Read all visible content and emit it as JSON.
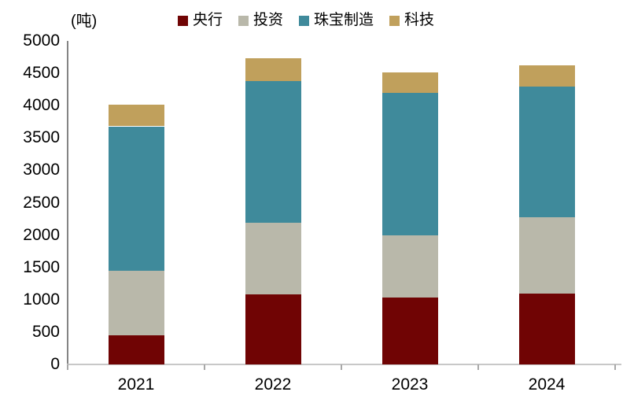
{
  "chart_data": {
    "type": "bar",
    "stacked": true,
    "title": "",
    "unit_label": "(吨)",
    "categories": [
      "2021",
      "2022",
      "2023",
      "2024"
    ],
    "series": [
      {
        "name": "央行",
        "slug": "central-bank",
        "color": "#700404",
        "values": [
          450,
          1080,
          1040,
          1090
        ]
      },
      {
        "name": "投资",
        "slug": "investment",
        "color": "#B9B8AA",
        "values": [
          1000,
          1110,
          960,
          1180
        ]
      },
      {
        "name": "珠宝制造",
        "slug": "jewelry-manufacturing",
        "color": "#3F8A9B",
        "values": [
          2230,
          2190,
          2200,
          2030
        ]
      },
      {
        "name": "科技",
        "slug": "technology",
        "color": "#C0A05C",
        "values": [
          340,
          350,
          310,
          320
        ]
      }
    ],
    "totals": [
      4020,
      4730,
      4510,
      4620
    ],
    "ylim": [
      0,
      5000
    ],
    "ytick_step": 500,
    "yticks": [
      "0",
      "500",
      "1000",
      "1500",
      "2000",
      "2500",
      "3000",
      "3500",
      "4000",
      "4500",
      "5000"
    ],
    "xlabel": "",
    "ylabel": "(吨)",
    "legend_position": "top",
    "grid": false,
    "axis_colors": {
      "y_axis": "#848484",
      "x_axis": "#C8C8C8",
      "tick": "#A8A8A8"
    },
    "text_color": "#000000",
    "background_color": "#FFFFFF"
  }
}
